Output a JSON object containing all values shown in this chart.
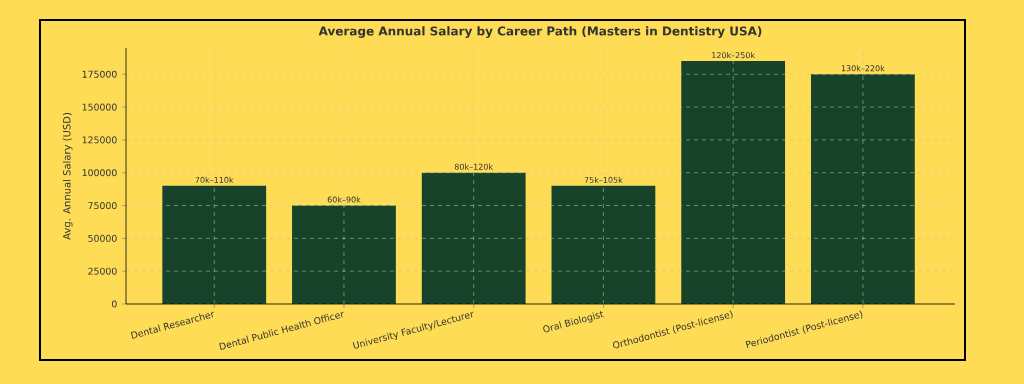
{
  "chart_data": {
    "type": "bar",
    "title": "Average Annual Salary by Career Path (Masters in Dentistry USA)",
    "ylabel": "Avg. Annual Salary (USD)",
    "categories": [
      "Dental Researcher",
      "Dental Public Health Officer",
      "University Faculty/Lecturer",
      "Oral Biologist",
      "Orthodontist (Post-license)",
      "Periodontist (Post-license)"
    ],
    "values": [
      90000,
      75000,
      100000,
      90000,
      185000,
      175000
    ],
    "annotations": [
      {
        "text": "70k–110k",
        "x": "Dental Researcher",
        "y": 90000
      },
      {
        "text": "60k–90k",
        "x": "Dental Public Health Officer",
        "y": 75000
      },
      {
        "text": "80k–120k",
        "x": "University Faculty/Lecturer",
        "y": 100000
      },
      {
        "text": "75k–105k",
        "x": "Oral Biologist",
        "y": 90000
      },
      {
        "text": "120k–250k",
        "x": "Orthodontist (Post-license)",
        "y": 185000
      },
      {
        "text": "130k–220k",
        "x": "Periodontist (Post-license)",
        "y": 175000
      }
    ],
    "color": "#16432a",
    "ylim": [
      0,
      195000
    ],
    "yticks": [
      0,
      25000,
      50000,
      75000,
      100000,
      125000,
      150000,
      175000
    ],
    "grid": true
  }
}
